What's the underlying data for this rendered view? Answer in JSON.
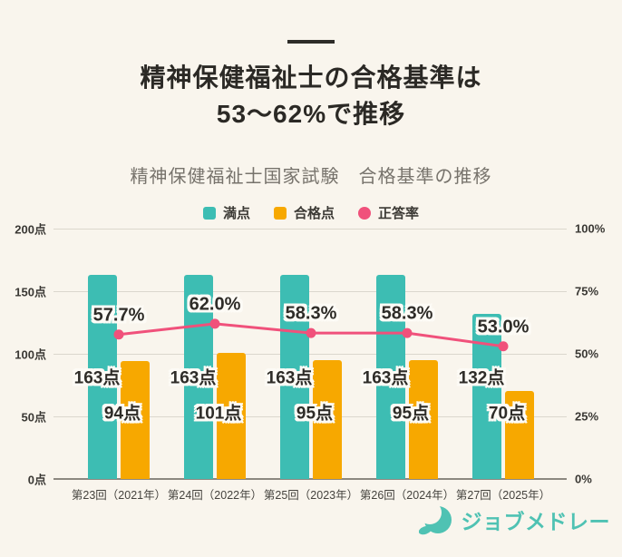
{
  "page": {
    "background": "#f9f5ed"
  },
  "header": {
    "title_line1": "精神保健福祉士の合格基準は",
    "title_line2": "53〜62%で推移",
    "subtitle": "精神保健福祉士国家試験　合格基準の推移"
  },
  "legend": {
    "items": [
      {
        "label": "満点",
        "color": "#3dbdb3",
        "shape": "square"
      },
      {
        "label": "合格点",
        "color": "#f7a800",
        "shape": "square"
      },
      {
        "label": "正答率",
        "color": "#f0517b",
        "shape": "circle"
      }
    ]
  },
  "chart_data": {
    "type": "combo",
    "title": "精神保健福祉士国家試験　合格基準の推移",
    "categories": [
      "第23回（2021年）",
      "第24回（2022年）",
      "第25回（2023年）",
      "第26回（2024年）",
      "第27回（2025年）"
    ],
    "series": [
      {
        "name": "満点",
        "type": "bar",
        "color": "#3dbdb3",
        "values": [
          163,
          163,
          163,
          163,
          132
        ],
        "labels": [
          "163点",
          "163点",
          "163点",
          "163点",
          "132点"
        ]
      },
      {
        "name": "合格点",
        "type": "bar",
        "color": "#f7a800",
        "values": [
          94,
          101,
          95,
          95,
          70
        ],
        "labels": [
          "94点",
          "101点",
          "95点",
          "95点",
          "70点"
        ]
      },
      {
        "name": "正答率",
        "type": "line",
        "color": "#f0517b",
        "values": [
          57.7,
          62.0,
          58.3,
          58.3,
          53.0
        ],
        "labels": [
          "57.7%",
          "62.0%",
          "58.3%",
          "58.3%",
          "53.0%"
        ]
      }
    ],
    "left_axis": {
      "min": 0,
      "max": 200,
      "ticks": [
        "200点",
        "150点",
        "100点",
        "50点",
        "0点"
      ]
    },
    "right_axis": {
      "min": 0,
      "max": 100,
      "ticks": [
        "100%",
        "75%",
        "50%",
        "25%",
        "0%"
      ]
    },
    "grid": true,
    "legend_position": "top"
  },
  "footer": {
    "logo_text": "ジョブメドレー",
    "logo_color": "#4fc2b3"
  }
}
